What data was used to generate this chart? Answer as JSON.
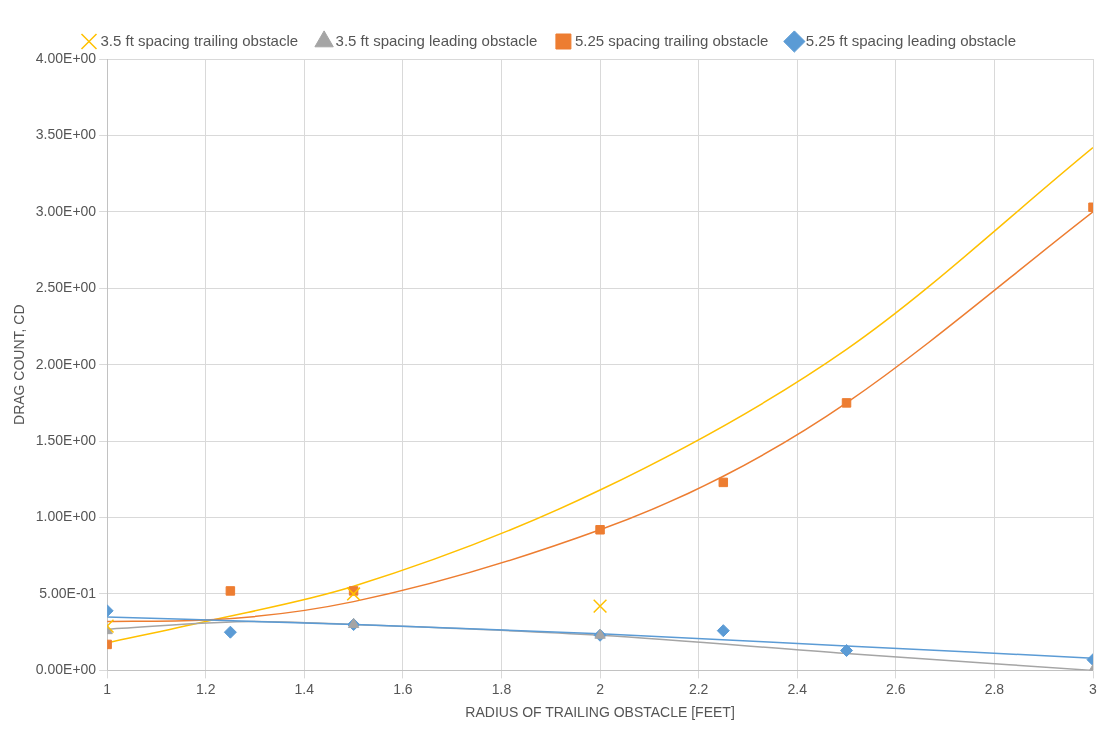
{
  "chart_data": {
    "type": "scatter",
    "xlabel": "RADIUS OF TRAILING OBSTACLE [FEET]",
    "ylabel": "DRAG COUNT, CD",
    "xlim": [
      1,
      3
    ],
    "xticks": [
      1,
      1.2,
      1.4,
      1.6,
      1.8,
      2,
      2.2,
      2.4,
      2.6,
      2.8,
      3
    ],
    "ylim": [
      0,
      4
    ],
    "yticks": [
      {
        "value": 0,
        "label": "0.00E+00"
      },
      {
        "value": 0.5,
        "label": "5.00E-01"
      },
      {
        "value": 1,
        "label": "1.00E+00"
      },
      {
        "value": 1.5,
        "label": "1.50E+00"
      },
      {
        "value": 2,
        "label": "2.00E+00"
      },
      {
        "value": 2.5,
        "label": "2.50E+00"
      },
      {
        "value": 3,
        "label": "3.00E+00"
      },
      {
        "value": 3.5,
        "label": "3.50E+00"
      },
      {
        "value": 4,
        "label": "4.00E+00"
      }
    ],
    "grid": true,
    "legend": "top",
    "series": [
      {
        "name": "5.25 ft spacing leading obstacle",
        "color": "#5b9bd5",
        "marker": "diamond",
        "x": [
          1,
          1.25,
          1.5,
          2,
          2.25,
          2.5,
          3
        ],
        "values": [
          0.39,
          0.25,
          0.3,
          0.23,
          0.26,
          0.13,
          0.07
        ]
      },
      {
        "name": "5.25 spacing trailing obstacle",
        "color": "#ed7d31",
        "marker": "square",
        "x": [
          1,
          1.25,
          1.5,
          2,
          2.25,
          2.5,
          3
        ],
        "values": [
          0.17,
          0.52,
          0.52,
          0.92,
          1.23,
          1.75,
          3.03
        ]
      },
      {
        "name": "3.5 ft spacing leading obstacle",
        "color": "#a5a5a5",
        "marker": "triangle",
        "x": [
          1,
          1.5,
          2,
          3
        ],
        "values": [
          0.26,
          0.3,
          0.23,
          0.0
        ]
      },
      {
        "name": "3.5 ft spacing trailing obstacle",
        "color": "#ffc000",
        "marker": "cross",
        "x": [
          1,
          1.5,
          2
        ],
        "values": [
          0.29,
          0.5,
          0.42
        ]
      },
      {
        "type": "line",
        "color": "#5b9bd5",
        "marker": "none",
        "x": [
          1,
          1.5,
          2,
          2.5,
          3
        ],
        "values": [
          0.35,
          0.3,
          0.24,
          0.16,
          0.08
        ]
      },
      {
        "type": "line",
        "color": "#ed7d31",
        "marker": "none",
        "x": [
          1,
          1.2,
          1.5,
          2,
          2.25,
          2.5,
          3
        ],
        "values": [
          0.32,
          0.33,
          0.45,
          0.92,
          1.27,
          1.75,
          3.0
        ]
      },
      {
        "type": "line",
        "color": "#a5a5a5",
        "marker": "none",
        "x": [
          1,
          1.3,
          1.5,
          2,
          2.5,
          3
        ],
        "values": [
          0.27,
          0.32,
          0.3,
          0.23,
          0.11,
          0.0
        ]
      },
      {
        "type": "line",
        "color": "#ffc000",
        "marker": "none",
        "x": [
          1,
          1.2,
          1.5,
          2,
          2.5,
          3
        ],
        "values": [
          0.18,
          0.32,
          0.55,
          1.18,
          2.1,
          3.42
        ]
      }
    ]
  }
}
